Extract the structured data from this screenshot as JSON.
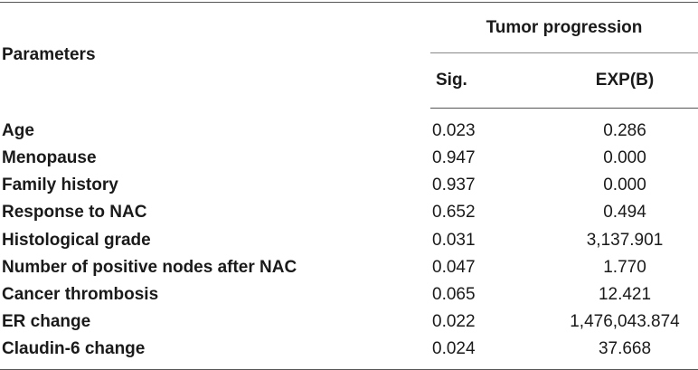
{
  "table": {
    "header": {
      "parameters_label": "Parameters",
      "group_label": "Tumor progression",
      "sig_label": "Sig.",
      "exp_label": "EXP(B)"
    },
    "rows": [
      {
        "parameter": "Age",
        "sig": "0.023",
        "exp": "0.286"
      },
      {
        "parameter": "Menopause",
        "sig": "0.947",
        "exp": "0.000"
      },
      {
        "parameter": "Family history",
        "sig": "0.937",
        "exp": "0.000"
      },
      {
        "parameter": "Response to NAC",
        "sig": "0.652",
        "exp": "0.494"
      },
      {
        "parameter": "Histological grade",
        "sig": "0.031",
        "exp": "3,137.901"
      },
      {
        "parameter": "Number of positive nodes after NAC",
        "sig": "0.047",
        "exp": "1.770"
      },
      {
        "parameter": "Cancer thrombosis",
        "sig": "0.065",
        "exp": "12.421"
      },
      {
        "parameter": "ER change",
        "sig": "0.022",
        "exp": "1,476,043.874"
      },
      {
        "parameter": "Claudin-6 change",
        "sig": "0.024",
        "exp": "37.668"
      }
    ]
  }
}
